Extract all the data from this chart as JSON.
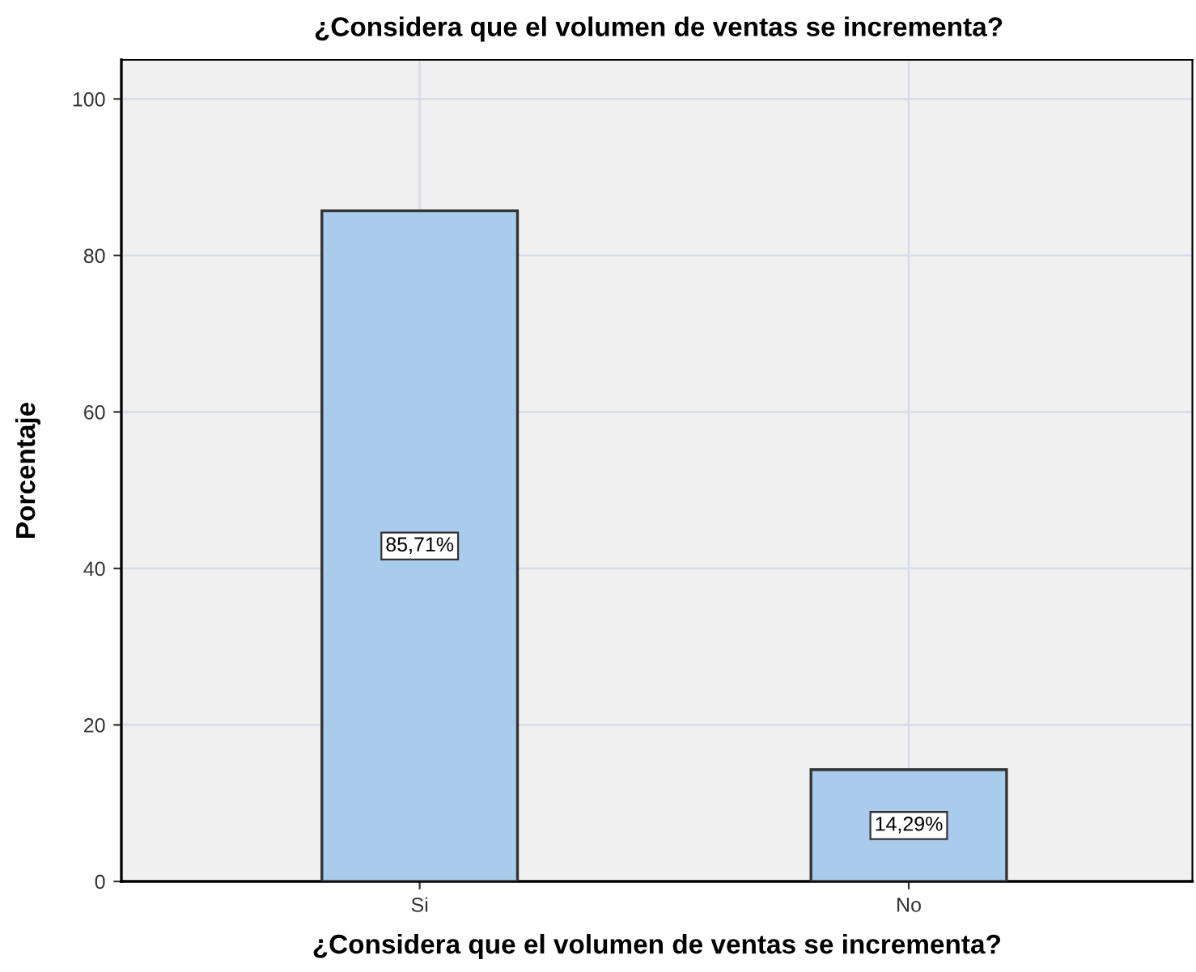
{
  "chart_data": {
    "type": "bar",
    "title": "¿Considera que el volumen de ventas se incrementa?",
    "xlabel": "¿Considera que el volumen de ventas se incrementa?",
    "ylabel": "Porcentaje",
    "categories": [
      "Si",
      "No"
    ],
    "values": [
      85.71,
      14.29
    ],
    "value_labels": [
      "85,71%",
      "14,29%"
    ],
    "color": "#a9cbec",
    "ylim": [
      0,
      105
    ],
    "yticks": [
      0,
      20,
      40,
      60,
      80,
      100
    ],
    "grid": true
  }
}
